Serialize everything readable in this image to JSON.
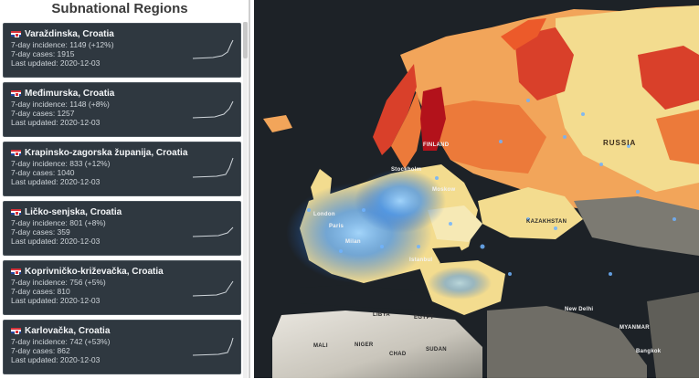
{
  "panel": {
    "title": "Subnational Regions",
    "regions": [
      {
        "name": "Varaždinska, Croatia",
        "incidence": "7-day incidence: 1149  (+12%)",
        "cases": "7-day cases: 1915",
        "updated": "Last updated: 2020-12-03"
      },
      {
        "name": "Međimurska, Croatia",
        "incidence": "7-day incidence: 1148  (+8%)",
        "cases": "7-day cases: 1257",
        "updated": "Last updated: 2020-12-03"
      },
      {
        "name": "Krapinsko-zagorska županija, Croatia",
        "incidence": "7-day incidence: 833  (+12%)",
        "cases": "7-day cases: 1040",
        "updated": "Last updated: 2020-12-03"
      },
      {
        "name": "Ličko-senjska, Croatia",
        "incidence": "7-day incidence: 801  (+8%)",
        "cases": "7-day cases: 359",
        "updated": "Last updated: 2020-12-03"
      },
      {
        "name": "Koprivničko-križevačka, Croatia",
        "incidence": "7-day incidence: 756  (+5%)",
        "cases": "7-day cases: 810",
        "updated": "Last updated: 2020-12-03"
      },
      {
        "name": "Karlovačka, Croatia",
        "incidence": "7-day incidence: 742  (+53%)",
        "cases": "7-day cases: 862",
        "updated": "Last updated: 2020-12-03"
      }
    ]
  },
  "map": {
    "labels": {
      "russia": "RUSSIA",
      "finland": "FINLAND",
      "stockholm": "Stockholm",
      "moscow": "Moskow",
      "london": "London",
      "paris": "Paris",
      "milan": "Milan",
      "kazakhstan": "KAZAKHSTAN",
      "istanbul": "Istanbul",
      "mali": "MALI",
      "niger": "NIGER",
      "chad": "CHAD",
      "sudan": "SUDAN",
      "libya": "LIBYA",
      "egypt": "EGYPT",
      "new_delhi": "New Delhi",
      "myanmar": "MYANMAR",
      "bangkok": "Bangkok"
    },
    "colors": {
      "ocean": "#1d2227",
      "dark_red": "#b3121b",
      "red": "#d9402a",
      "orange": "#ec7a3a",
      "light_orange": "#f2a55a",
      "pale_yellow": "#f3dc8f",
      "cream": "#f6e9b5",
      "hotspot_blue": "#4aa3ff",
      "terrain": "#8c8a82"
    }
  }
}
